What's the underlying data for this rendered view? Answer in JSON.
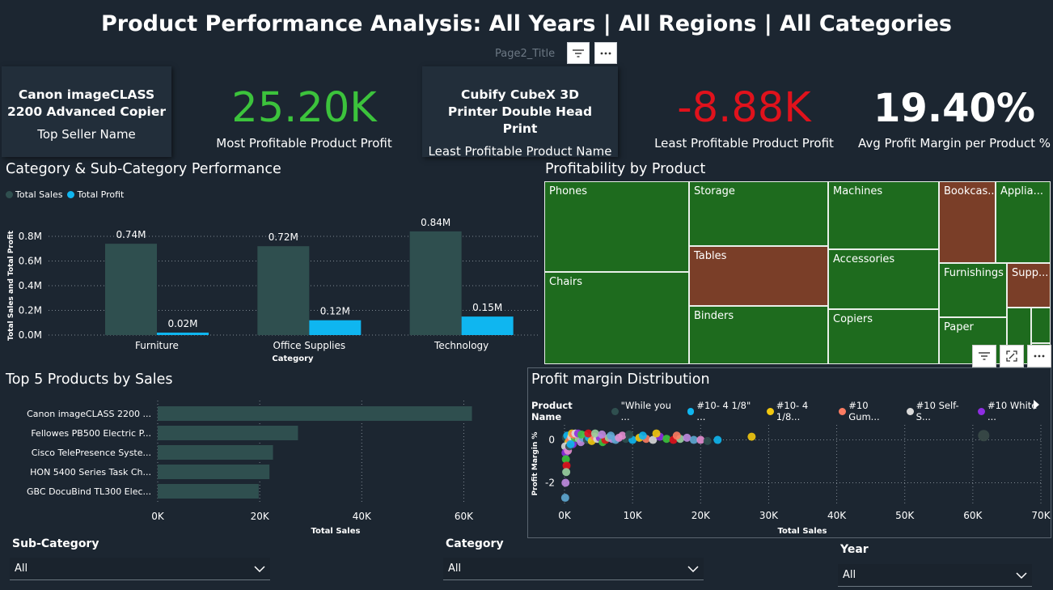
{
  "header": {
    "title": "Product Performance Analysis: All Years | All Regions | All Categories",
    "page_title": "Page2_Title",
    "filter_icon": "filter-icon",
    "more_icon": "more-options-icon"
  },
  "kpis": {
    "top_seller_name": "Canon imageCLASS 2200 Advanced Copier",
    "top_seller_caption": "Top Seller Name",
    "most_profitable_value": "25.20K",
    "most_profitable_caption": "Most Profitable Product Profit",
    "least_profitable_name": "Cubify CubeX 3D Printer Double Head Print",
    "least_profitable_name_caption": "Least Profitable Product Name",
    "least_profitable_value": "-8.88K",
    "least_profitable_caption": "Least Profitable Product Profit",
    "avg_margin_value": "19.40%",
    "avg_margin_caption": "Avg Profit Margin per Product %",
    "colors": {
      "positive": "#3cc33c",
      "negative": "#e0121c"
    }
  },
  "category_chart": {
    "title": "Category & Sub-Category Performance",
    "legend": [
      {
        "name": "Total Sales",
        "color": "#2f4f4f"
      },
      {
        "name": "Total Profit",
        "color": "#0fb6f0"
      }
    ],
    "chart_data": {
      "type": "bar",
      "categories": [
        "Furniture",
        "Office Supplies",
        "Technology"
      ],
      "series": [
        {
          "name": "Total Sales",
          "values": [
            0.74,
            0.72,
            0.84
          ],
          "labels": [
            "0.74M",
            "0.72M",
            "0.84M"
          ]
        },
        {
          "name": "Total Profit",
          "values": [
            0.02,
            0.12,
            0.15
          ],
          "labels": [
            "0.02M",
            "0.12M",
            "0.15M"
          ]
        }
      ],
      "yticks": [
        "0.0M",
        "0.2M",
        "0.4M",
        "0.6M",
        "0.8M"
      ],
      "ylim": [
        0,
        0.8
      ],
      "xlabel": "Category",
      "ylabel": "Total Sales and Total Profit",
      "grid": true
    }
  },
  "treemap": {
    "title": "Profitability by Product",
    "colors": {
      "profit": "#1e6b1e",
      "loss": "#7a3e28"
    },
    "cells": [
      {
        "label": "Phones",
        "status": "profit"
      },
      {
        "label": "Chairs",
        "status": "profit"
      },
      {
        "label": "Storage",
        "status": "profit"
      },
      {
        "label": "Tables",
        "status": "loss"
      },
      {
        "label": "Binders",
        "status": "profit"
      },
      {
        "label": "Machines",
        "status": "profit"
      },
      {
        "label": "Accessories",
        "status": "profit"
      },
      {
        "label": "Copiers",
        "status": "profit"
      },
      {
        "label": "Bookcas...",
        "status": "loss"
      },
      {
        "label": "Applia...",
        "status": "profit"
      },
      {
        "label": "Furnishings",
        "status": "profit"
      },
      {
        "label": "Supp...",
        "status": "loss"
      },
      {
        "label": "Paper",
        "status": "profit"
      },
      {
        "label": "",
        "status": "profit"
      },
      {
        "label": "",
        "status": "profit"
      },
      {
        "label": "",
        "status": "profit"
      }
    ]
  },
  "top5_chart": {
    "title": "Top 5 Products by Sales",
    "chart_data": {
      "type": "bar",
      "orientation": "horizontal",
      "categories": [
        "Canon imageCLASS 2200 ...",
        "Fellowes PB500 Electric P...",
        "Cisco TelePresence Syste...",
        "HON 5400 Series Task Ch...",
        "GBC DocuBind TL300 Elec..."
      ],
      "values": [
        61600,
        27500,
        22600,
        21900,
        19800
      ],
      "xticks": [
        "0K",
        "20K",
        "40K",
        "60K"
      ],
      "xlim": [
        0,
        65000
      ],
      "xlabel": "Total Sales",
      "color": "#2f4f4f",
      "grid": true
    }
  },
  "scatter_chart": {
    "title": "Profit margin Distribution",
    "legend_title": "Product Name",
    "legend": [
      {
        "name": "\"While you ...",
        "color": "#2f4f4f"
      },
      {
        "name": "#10- 4 1/8\" ...",
        "color": "#0fb6f0"
      },
      {
        "name": "#10- 4 1/8...",
        "color": "#f2c80f"
      },
      {
        "name": "#10 Gum...",
        "color": "#fd7c62"
      },
      {
        "name": "#10 Self-S...",
        "color": "#d9d9d9"
      },
      {
        "name": "#10 White ...",
        "color": "#8e2de2"
      }
    ],
    "chart_data": {
      "type": "scatter",
      "xlabel": "Total Sales",
      "ylabel": "Profit Margin %",
      "xticks": [
        "0K",
        "10K",
        "20K",
        "30K",
        "40K",
        "50K",
        "60K",
        "70K"
      ],
      "yticks": [
        "0",
        "-2"
      ],
      "xlim": [
        0,
        70000
      ],
      "ylim": [
        -3,
        0.7
      ],
      "grid": true,
      "points": [
        [
          200,
          0.1
        ],
        [
          400,
          0.2
        ],
        [
          600,
          -0.1
        ],
        [
          800,
          0.0
        ],
        [
          1000,
          0.15
        ],
        [
          1200,
          -0.2
        ],
        [
          1500,
          0.1
        ],
        [
          1800,
          0.2
        ],
        [
          2100,
          0.05
        ],
        [
          2400,
          -0.1
        ],
        [
          2700,
          0.1
        ],
        [
          3000,
          0.2
        ],
        [
          3300,
          0.0
        ],
        [
          3600,
          0.1
        ],
        [
          4000,
          -0.05
        ],
        [
          4400,
          0.15
        ],
        [
          4800,
          0.05
        ],
        [
          5200,
          0.1
        ],
        [
          5600,
          -0.1
        ],
        [
          6000,
          0.0
        ],
        [
          6500,
          0.1
        ],
        [
          7000,
          0.05
        ],
        [
          7500,
          0.0
        ],
        [
          8000,
          0.1
        ],
        [
          9000,
          0.05
        ],
        [
          10000,
          0.0
        ],
        [
          11000,
          0.1
        ],
        [
          12000,
          0.05
        ],
        [
          13000,
          0.0
        ],
        [
          14000,
          0.15
        ],
        [
          15000,
          0.05
        ],
        [
          16000,
          0.0
        ],
        [
          17000,
          0.05
        ],
        [
          18000,
          0.1
        ],
        [
          19000,
          0.0
        ],
        [
          20000,
          0.0
        ],
        [
          21000,
          -0.05
        ],
        [
          22500,
          0.0
        ],
        [
          27500,
          0.15
        ],
        [
          61600,
          0.2
        ],
        [
          100,
          -0.3
        ],
        [
          150,
          -0.6
        ],
        [
          200,
          -0.9
        ],
        [
          300,
          -1.2
        ],
        [
          250,
          -1.5
        ],
        [
          150,
          -2.0
        ],
        [
          100,
          -2.7
        ],
        [
          500,
          -0.5
        ],
        [
          700,
          -0.3
        ],
        [
          900,
          -0.2
        ],
        [
          1100,
          0.3
        ],
        [
          1300,
          0.25
        ],
        [
          1600,
          0.3
        ],
        [
          2000,
          0.3
        ],
        [
          2500,
          0.25
        ],
        [
          3500,
          0.3
        ],
        [
          4500,
          0.3
        ],
        [
          5500,
          0.25
        ],
        [
          6800,
          0.2
        ],
        [
          8500,
          0.2
        ],
        [
          9500,
          0.25
        ],
        [
          11500,
          0.2
        ],
        [
          13500,
          0.3
        ],
        [
          16500,
          0.2
        ]
      ],
      "point_colors": [
        "#2f4f4f",
        "#0fb6f0",
        "#f2c80f",
        "#fd7c62",
        "#d9d9d9",
        "#8e2de2",
        "#3cc33c",
        "#e0121c",
        "#9ad0a0",
        "#c08be0",
        "#5fa8d3",
        "#e38ed0"
      ]
    }
  },
  "slicers": {
    "subcategory": {
      "label": "Sub-Category",
      "value": "All"
    },
    "category": {
      "label": "Category",
      "value": "All"
    },
    "year": {
      "label": "Year",
      "value": "All"
    }
  }
}
